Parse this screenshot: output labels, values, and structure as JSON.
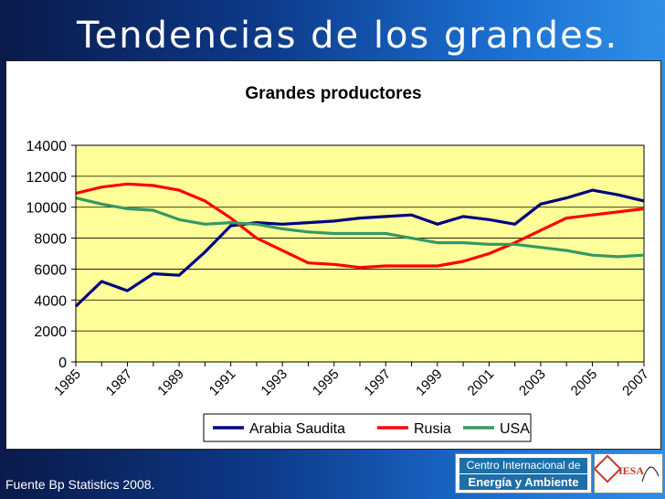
{
  "slide": {
    "title": "Tendencias de los grandes.",
    "footer": "Fuente Bp Statistics 2008."
  },
  "logos": {
    "cie_line1": "Centro Internacional de",
    "cie_line2": "Energía y Ambiente",
    "iesa": "IESA"
  },
  "colors": {
    "plot_bg": "#ffff99",
    "arabia": "#000080",
    "rusia": "#ff0000",
    "usa": "#339966"
  },
  "chart_data": {
    "type": "line",
    "title": "Grandes productores",
    "x": [
      1985,
      1986,
      1987,
      1988,
      1989,
      1990,
      1991,
      1992,
      1993,
      1994,
      1995,
      1996,
      1997,
      1998,
      1999,
      2000,
      2001,
      2002,
      2003,
      2004,
      2005,
      2006,
      2007
    ],
    "x_tick_labels": [
      "1985",
      "1987",
      "1989",
      "1991",
      "1993",
      "1995",
      "1997",
      "1999",
      "2001",
      "2003",
      "2005",
      "2007"
    ],
    "y_ticks": [
      0,
      2000,
      4000,
      6000,
      8000,
      10000,
      12000,
      14000
    ],
    "ylim": [
      0,
      14000
    ],
    "grid": true,
    "legend_position": "bottom",
    "series": [
      {
        "name": "Arabia Saudita",
        "values": [
          3600,
          5200,
          4600,
          5700,
          5600,
          7100,
          8800,
          9000,
          8900,
          9000,
          9100,
          9300,
          9400,
          9500,
          8900,
          9400,
          9200,
          8900,
          10200,
          10600,
          11100,
          10800,
          10400
        ]
      },
      {
        "name": "Rusia",
        "values": [
          10900,
          11300,
          11500,
          11400,
          11100,
          10400,
          9300,
          8000,
          7200,
          6400,
          6300,
          6100,
          6200,
          6200,
          6200,
          6500,
          7000,
          7700,
          8500,
          9300,
          9500,
          9700,
          9900
        ]
      },
      {
        "name": "USA",
        "values": [
          10600,
          10200,
          9900,
          9800,
          9200,
          8900,
          9000,
          8900,
          8600,
          8400,
          8300,
          8300,
          8300,
          8000,
          7700,
          7700,
          7600,
          7600,
          7400,
          7200,
          6900,
          6800,
          6900
        ]
      }
    ]
  }
}
